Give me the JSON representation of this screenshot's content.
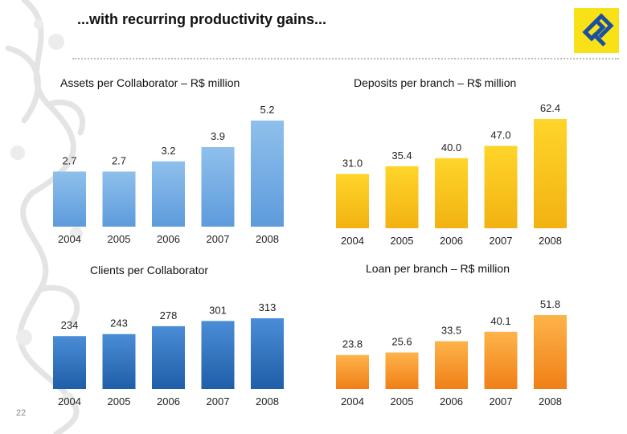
{
  "page": {
    "title": "...with recurring productivity gains...",
    "page_number": "22"
  },
  "colors": {
    "blue_top": "#8fc0ec",
    "blue_bottom": "#5d9bdc",
    "darkblue_top": "#4a8dd6",
    "darkblue_bottom": "#1f5ea8",
    "yellow_top": "#ffd52a",
    "yellow_bottom": "#f2b211",
    "orange_top": "#fdb44a",
    "orange_bottom": "#f07f16",
    "logo_yellow": "#f8e116",
    "logo_blue": "#1b4fa0"
  },
  "chart_data": [
    {
      "type": "bar",
      "title": "Assets per Collaborator – R$ million",
      "categories": [
        "2004",
        "2005",
        "2006",
        "2007",
        "2008"
      ],
      "values": [
        2.7,
        2.7,
        3.2,
        3.9,
        5.2
      ],
      "value_labels": [
        "2.7",
        "2.7",
        "3.2",
        "3.9",
        "5.2"
      ],
      "ylim": [
        0,
        5.2
      ],
      "color": "blue"
    },
    {
      "type": "bar",
      "title": "Deposits per branch – R$ million",
      "categories": [
        "2004",
        "2005",
        "2006",
        "2007",
        "2008"
      ],
      "values": [
        31.0,
        35.4,
        40.0,
        47.0,
        62.4
      ],
      "value_labels": [
        "31.0",
        "35.4",
        "40.0",
        "47.0",
        "62.4"
      ],
      "ylim": [
        0,
        62.4
      ],
      "color": "yellow"
    },
    {
      "type": "bar",
      "title": "Clients per Collaborator",
      "categories": [
        "2004",
        "2005",
        "2006",
        "2007",
        "2008"
      ],
      "values": [
        234,
        243,
        278,
        301,
        313
      ],
      "value_labels": [
        "234",
        "243",
        "278",
        "301",
        "313"
      ],
      "ylim": [
        0,
        313
      ],
      "color": "darkblue"
    },
    {
      "type": "bar",
      "title": "Loan per branch – R$ million",
      "categories": [
        "2004",
        "2005",
        "2006",
        "2007",
        "2008"
      ],
      "values": [
        23.8,
        25.6,
        33.5,
        40.1,
        51.8
      ],
      "value_labels": [
        "23.8",
        "25.6",
        "33.5",
        "40.1",
        "51.8"
      ],
      "ylim": [
        0,
        51.8
      ],
      "color": "orange"
    }
  ]
}
